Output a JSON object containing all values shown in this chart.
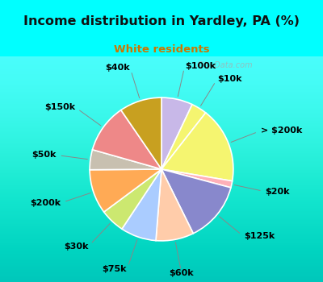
{
  "title": "Income distribution in Yardley, PA (%)",
  "subtitle": "White residents",
  "title_color": "#111111",
  "subtitle_color": "#cc7700",
  "background_outer": "#00ffff",
  "background_inner_grad": "#d8ede0",
  "labels": [
    "$100k",
    "$10k",
    "> $200k",
    "$20k",
    "$125k",
    "$60k",
    "$75k",
    "$30k",
    "$200k",
    "$50k",
    "$150k",
    "$40k"
  ],
  "values": [
    7.0,
    3.5,
    17.0,
    1.5,
    13.5,
    8.5,
    8.0,
    5.5,
    10.0,
    4.5,
    11.0,
    9.5
  ],
  "colors": [
    "#c8b8e8",
    "#f5f570",
    "#f5f570",
    "#ffb0b8",
    "#8888cc",
    "#ffccaa",
    "#aaccff",
    "#cce870",
    "#ffaa55",
    "#c8c0b0",
    "#ee8888",
    "#c8a020"
  ],
  "wedge_edge_color": "#ffffff",
  "label_fontsize": 8.0,
  "label_color": "#000000",
  "watermark": "City-Data.com"
}
